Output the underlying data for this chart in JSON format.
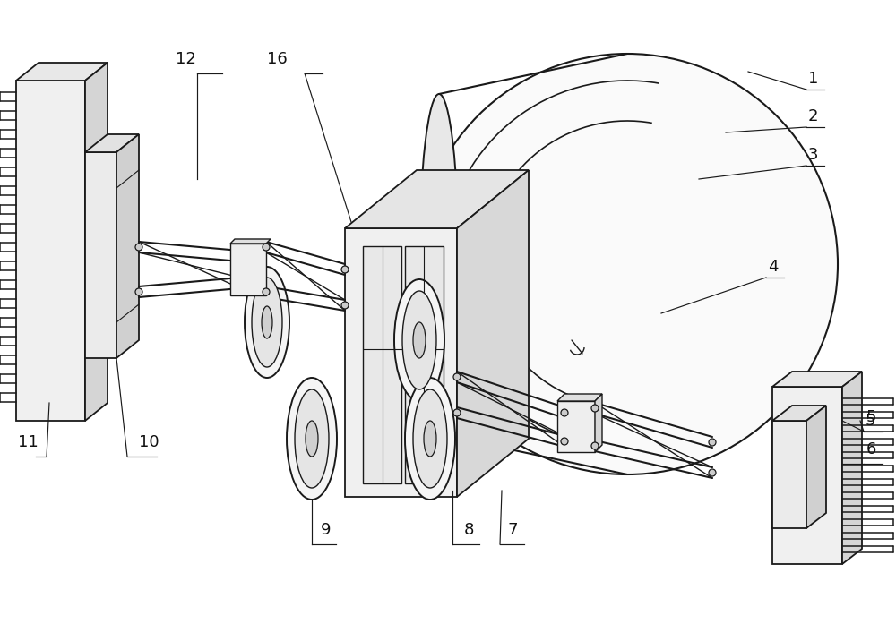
{
  "bg_color": "#ffffff",
  "line_color": "#1a1a1a",
  "lw_main": 1.3,
  "lw_thin": 0.85,
  "label_fontsize": 13,
  "figsize": [
    10.0,
    7.16
  ],
  "dpi": 100
}
